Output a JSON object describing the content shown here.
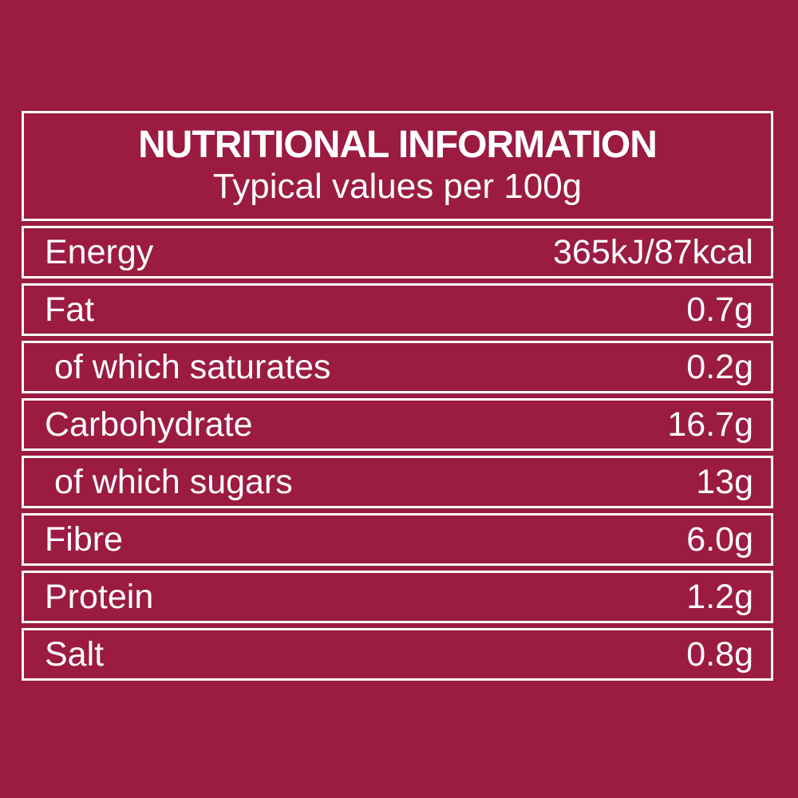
{
  "colors": {
    "background": "#9B1B42",
    "line": "#FFFFFF",
    "text": "#FFFFFF"
  },
  "label": {
    "title": "NUTRITIONAL INFORMATION",
    "subtitle": "Typical values per 100g",
    "rows": [
      {
        "label": "Energy",
        "value": "365kJ/87kcal",
        "indent": false
      },
      {
        "label": "Fat",
        "value": "0.7g",
        "indent": false
      },
      {
        "label": "of which saturates",
        "value": "0.2g",
        "indent": true
      },
      {
        "label": "Carbohydrate",
        "value": "16.7g",
        "indent": false
      },
      {
        "label": "of which sugars",
        "value": "13g",
        "indent": true
      },
      {
        "label": "Fibre",
        "value": "6.0g",
        "indent": false
      },
      {
        "label": "Protein",
        "value": "1.2g",
        "indent": false
      },
      {
        "label": "Salt",
        "value": "0.8g",
        "indent": false
      }
    ]
  }
}
